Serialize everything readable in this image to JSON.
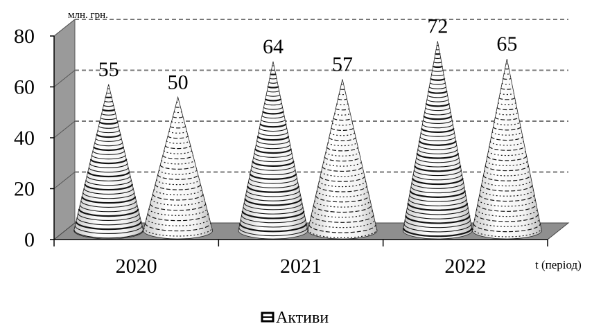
{
  "chart_data": {
    "type": "bar",
    "shape": "cone",
    "title": "",
    "categories": [
      "2020",
      "2021",
      "2022"
    ],
    "series": [
      {
        "name": "Активи",
        "values": [
          55,
          64,
          72
        ],
        "pattern": "solid-stripes"
      },
      {
        "name": "",
        "values": [
          50,
          57,
          65
        ],
        "pattern": "dashed-stripes"
      }
    ],
    "ylabel": "млн. грн.",
    "xlabel": "t (період)",
    "ylim": [
      0,
      80
    ],
    "yticks": [
      0,
      20,
      40,
      60,
      80
    ],
    "grid": true,
    "legend": {
      "position": "bottom-center",
      "entries": [
        "Активи"
      ]
    }
  }
}
